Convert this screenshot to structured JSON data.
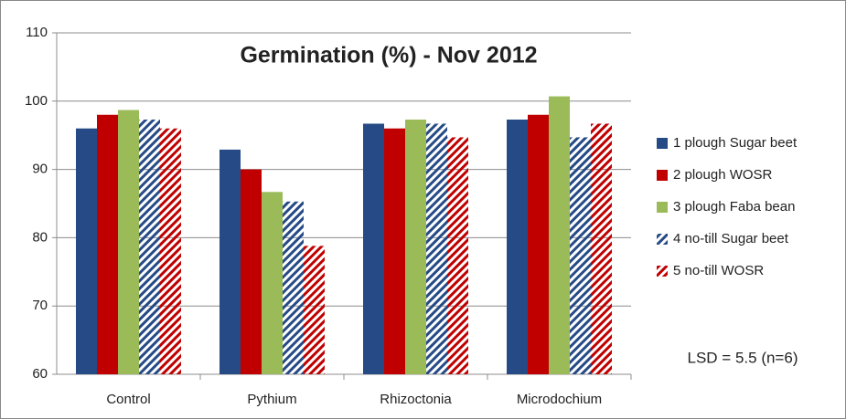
{
  "chart_data": {
    "type": "bar",
    "title": "Germination (%) - Nov 2012",
    "categories": [
      "Control",
      "Pythium",
      "Rhizoctonia",
      "Microdochium"
    ],
    "series": [
      {
        "name": "1 plough Sugar beet",
        "color": "#254a85",
        "hatch": false,
        "values": [
          96,
          92.9,
          96.7,
          97.3
        ]
      },
      {
        "name": "2 plough WOSR",
        "color": "#c00000",
        "hatch": false,
        "values": [
          98,
          90,
          96,
          98
        ]
      },
      {
        "name": "3 plough Faba bean",
        "color": "#9bbb59",
        "hatch": false,
        "values": [
          98.7,
          86.7,
          97.3,
          100.7
        ]
      },
      {
        "name": "4 no-till Sugar beet",
        "color": "#254a85",
        "hatch": true,
        "values": [
          97.3,
          85.3,
          96.7,
          94.7
        ]
      },
      {
        "name": "5 no-till WOSR",
        "color": "#c00000",
        "hatch": true,
        "values": [
          96,
          78.8,
          94.7,
          96.7
        ]
      }
    ],
    "ylim": [
      60,
      110
    ],
    "yticks": [
      60,
      70,
      80,
      90,
      100,
      110
    ],
    "grid": true,
    "annotation": "LSD = 5.5 (n=6)",
    "legend": "right"
  }
}
